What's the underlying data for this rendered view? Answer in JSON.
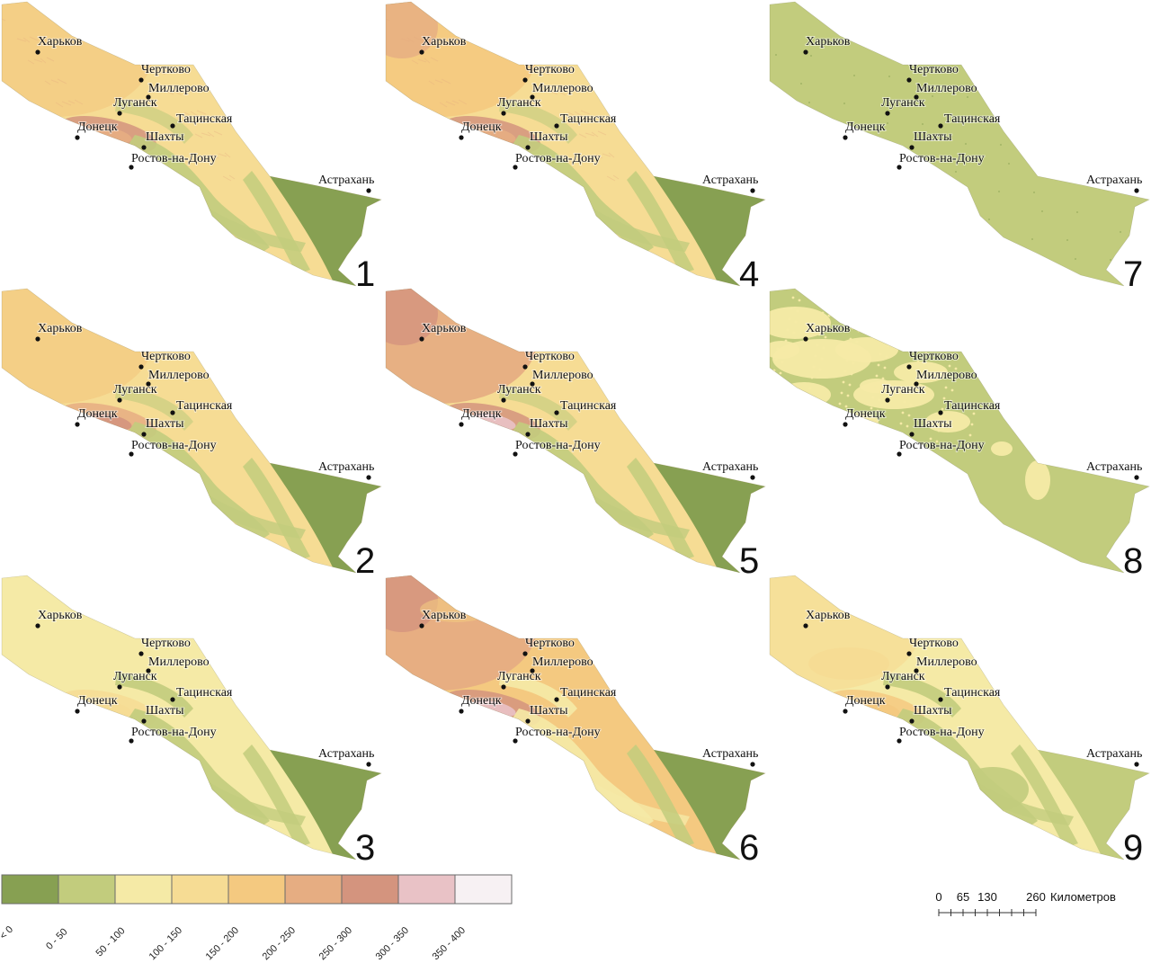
{
  "cities": [
    {
      "key": "kharkov",
      "name": "Харьков"
    },
    {
      "key": "chertkovo",
      "name": "Чертково"
    },
    {
      "key": "millerovo",
      "name": "Миллерово"
    },
    {
      "key": "lugansk",
      "name": "Луганск"
    },
    {
      "key": "tatsinskaya",
      "name": "Тацинская"
    },
    {
      "key": "donetsk",
      "name": "Донецк"
    },
    {
      "key": "shakhty",
      "name": "Шахты"
    },
    {
      "key": "rostov",
      "name": "Ростов-на-Дону"
    },
    {
      "key": "astrakhan",
      "name": "Астрахань"
    }
  ],
  "panels": [
    {
      "number": "1",
      "pattern": "relief-fine"
    },
    {
      "number": "4",
      "pattern": "relief-fine-warm"
    },
    {
      "number": "7",
      "pattern": "uniform-low"
    },
    {
      "number": "2",
      "pattern": "relief-smooth"
    },
    {
      "number": "5",
      "pattern": "relief-warm"
    },
    {
      "number": "8",
      "pattern": "patchy-low"
    },
    {
      "number": "3",
      "pattern": "coarse"
    },
    {
      "number": "6",
      "pattern": "coarse-warm"
    },
    {
      "number": "9",
      "pattern": "coarse-mixed"
    }
  ],
  "legend": {
    "classes": [
      {
        "label": "< 0",
        "color": "#87a052"
      },
      {
        "label": "0 - 50",
        "color": "#c2cc7d"
      },
      {
        "label": "50 - 100",
        "color": "#f5eaa6"
      },
      {
        "label": "100 - 150",
        "color": "#f6dc94"
      },
      {
        "label": "150 - 200",
        "color": "#f4c980"
      },
      {
        "label": "200 - 250",
        "color": "#e6ad82"
      },
      {
        "label": "250 - 300",
        "color": "#d4947e"
      },
      {
        "label": "300 - 350",
        "color": "#e9c2c6"
      },
      {
        "label": "350 - 400",
        "color": "#f7f1f3"
      }
    ]
  },
  "scale_bar": {
    "ticks": [
      "0",
      "65",
      "130",
      "260"
    ],
    "unit": "Километров"
  }
}
